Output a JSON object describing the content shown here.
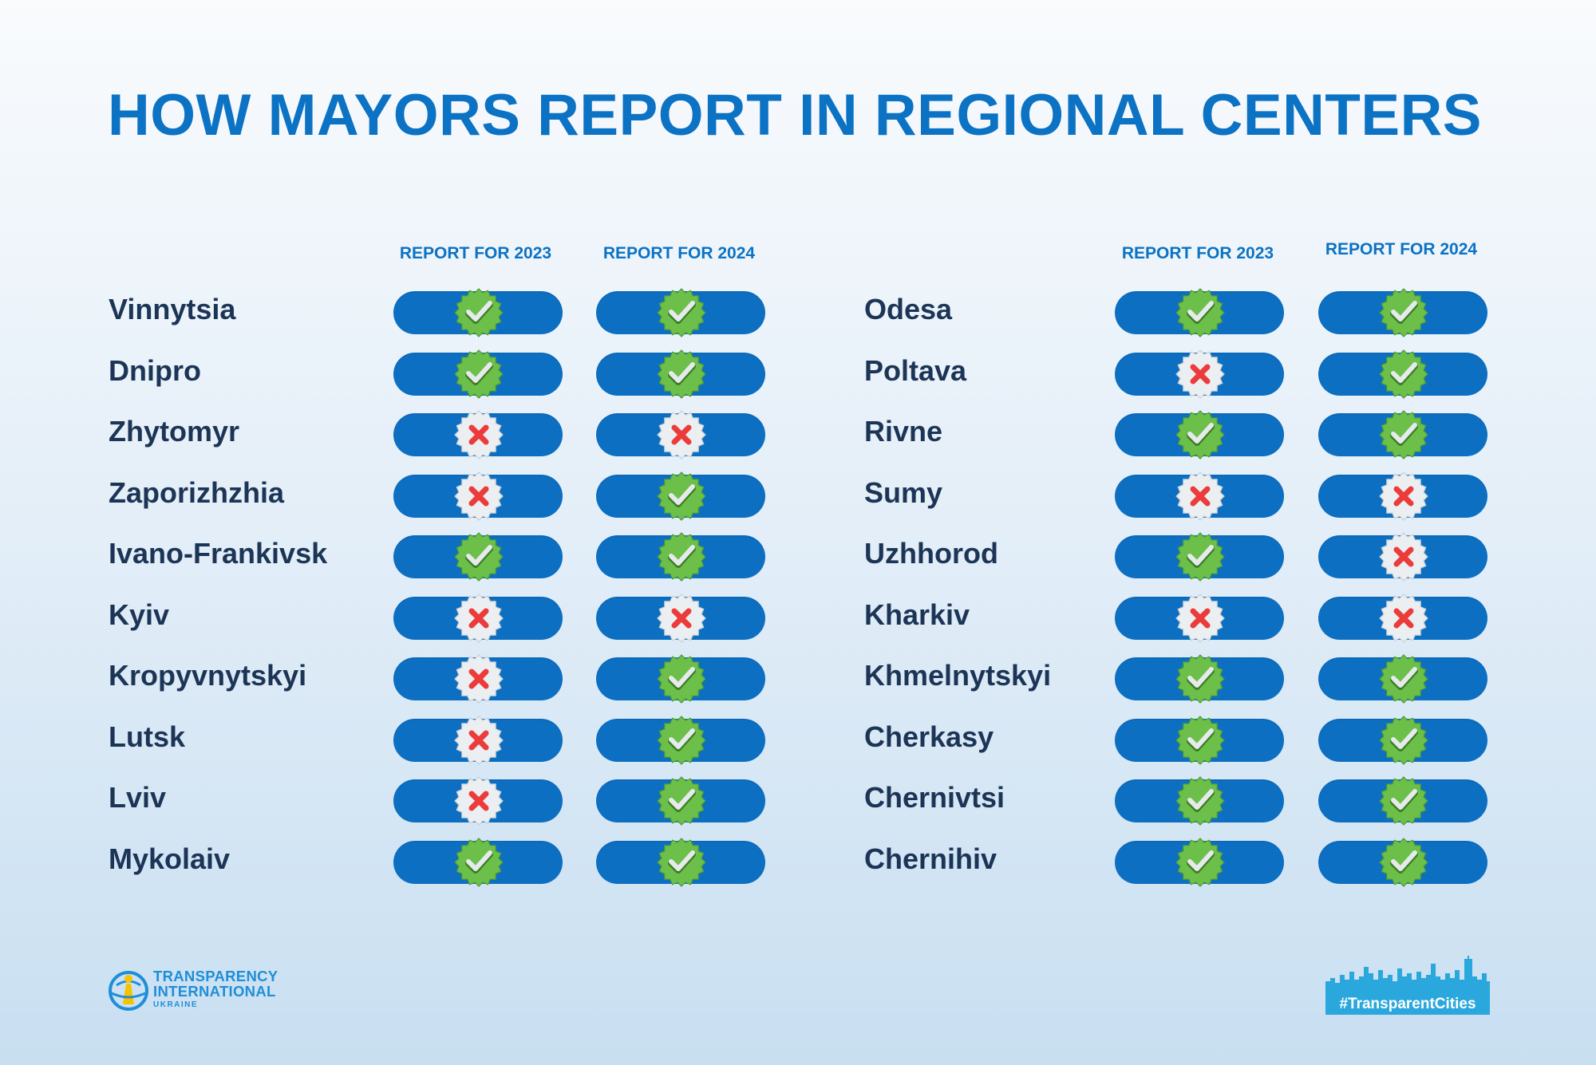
{
  "title": "HOW MAYORS REPORT IN REGIONAL CENTERS",
  "columns": [
    "REPORT FOR 2023",
    "REPORT FOR 2024"
  ],
  "status_icons": {
    "yes": "green-check-badge-icon",
    "no": "red-cross-badge-icon"
  },
  "colors": {
    "pill": "#0d6fc2",
    "title": "#0b72c4",
    "check": "#6cc04a",
    "cross": "#ec3b3b"
  },
  "left_cities": [
    {
      "name": "Vinnytsia",
      "r2023": "yes",
      "r2024": "yes"
    },
    {
      "name": "Dnipro",
      "r2023": "yes",
      "r2024": "yes"
    },
    {
      "name": "Zhytomyr",
      "r2023": "no",
      "r2024": "no"
    },
    {
      "name": "Zaporizhzhia",
      "r2023": "no",
      "r2024": "yes"
    },
    {
      "name": "Ivano-Frankivsk",
      "r2023": "yes",
      "r2024": "yes"
    },
    {
      "name": "Kyiv",
      "r2023": "no",
      "r2024": "no"
    },
    {
      "name": "Kropyvnytskyi",
      "r2023": "no",
      "r2024": "yes"
    },
    {
      "name": "Lutsk",
      "r2023": "no",
      "r2024": "yes"
    },
    {
      "name": "Lviv",
      "r2023": "no",
      "r2024": "yes"
    },
    {
      "name": "Mykolaiv",
      "r2023": "yes",
      "r2024": "yes"
    }
  ],
  "right_cities": [
    {
      "name": "Odesa",
      "r2023": "yes",
      "r2024": "yes"
    },
    {
      "name": "Poltava",
      "r2023": "no",
      "r2024": "yes"
    },
    {
      "name": "Rivne",
      "r2023": "yes",
      "r2024": "yes"
    },
    {
      "name": "Sumy",
      "r2023": "no",
      "r2024": "no"
    },
    {
      "name": "Uzhhorod",
      "r2023": "yes",
      "r2024": "no"
    },
    {
      "name": "Kharkiv",
      "r2023": "no",
      "r2024": "no"
    },
    {
      "name": "Khmelnytskyi",
      "r2023": "yes",
      "r2024": "yes"
    },
    {
      "name": "Cherkasy",
      "r2023": "yes",
      "r2024": "yes"
    },
    {
      "name": "Chernivtsi",
      "r2023": "yes",
      "r2024": "yes"
    },
    {
      "name": "Chernihiv",
      "r2023": "yes",
      "r2024": "yes"
    }
  ],
  "logo_ti": {
    "line1": "TRANSPARENCY",
    "line2": "INTERNATIONAL",
    "line3": "UKRAINE"
  },
  "logo_tc": {
    "text": "#TransparentCities"
  }
}
